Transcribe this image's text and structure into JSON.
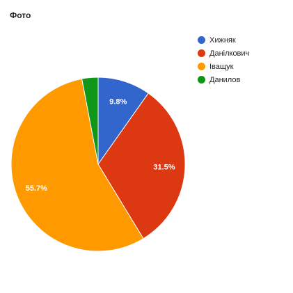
{
  "chart_data": {
    "type": "pie",
    "title": "Фото",
    "labels": [
      "Хижняк",
      "Данілкович",
      "Іващук",
      "Данилов"
    ],
    "values": [
      9.8,
      31.5,
      55.7,
      3.0
    ],
    "colors": [
      "#3366cc",
      "#dc3912",
      "#ff9900",
      "#109618"
    ],
    "data_labels": [
      "9.8%",
      "31.5%",
      "55.7%",
      ""
    ],
    "legend_position": "top-right"
  }
}
